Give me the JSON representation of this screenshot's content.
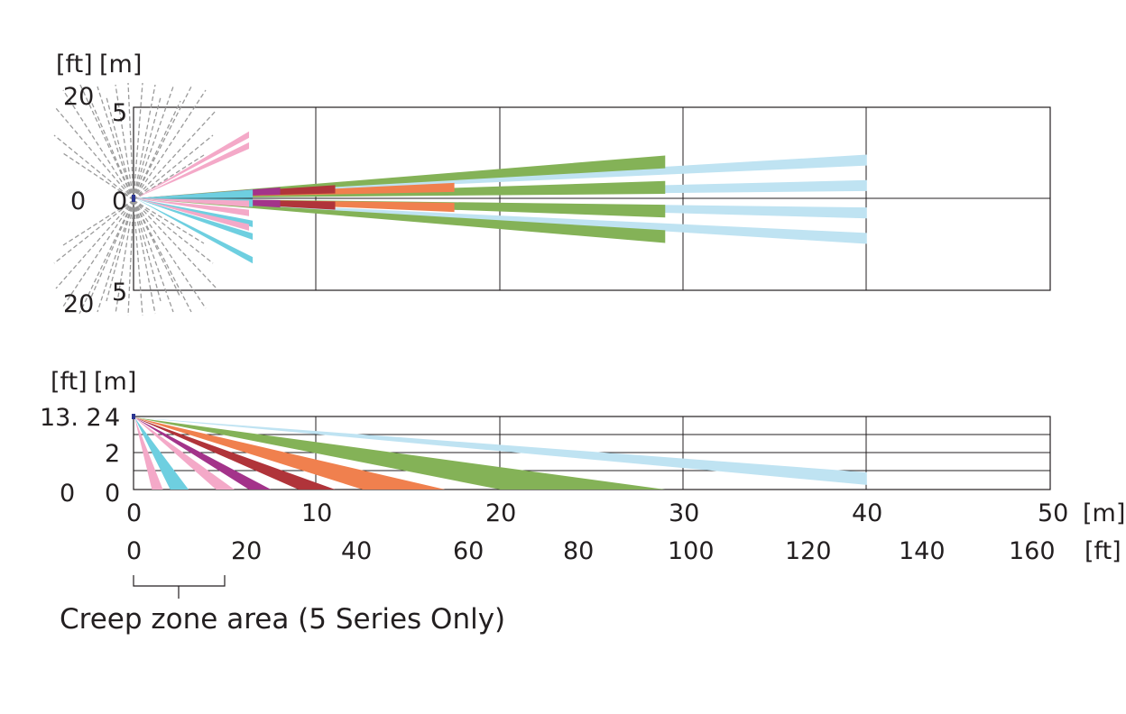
{
  "colors": {
    "frame": "#231f20",
    "grid": "#231f20",
    "ir_gray": "#9a9a9a",
    "pink": "#f4a9c8",
    "cyan": "#6ecfe0",
    "purple": "#a3338a",
    "dark_red": "#b0343a",
    "orange": "#f0804e",
    "green": "#84b257",
    "light_blue": "#bfe3f2",
    "navy": "#2b3590"
  },
  "top_view": {
    "units_ft": "[ft]",
    "units_m": "[m]",
    "ft_top": "20",
    "ft_mid": "0",
    "ft_bottom": "20",
    "m_top": "5",
    "m_mid": "0",
    "m_bottom": "5",
    "y_range_m": [
      -5,
      5
    ],
    "x_range_m": [
      0,
      50
    ],
    "gridlines_x_m": [
      10,
      20,
      30,
      40
    ]
  },
  "side_view": {
    "units_ft": "[ft]",
    "units_m": "[m]",
    "ft_top": "13. 2",
    "ft_bottom": "0",
    "m_top": "4",
    "m_mid": "2",
    "m_bottom": "0",
    "y_range_m": [
      0,
      4
    ],
    "gridlines_y_m": [
      1,
      2,
      3
    ],
    "gridlines_x_m": [
      10,
      20,
      30,
      40
    ]
  },
  "x_axis": {
    "m_ticks": [
      "0",
      "10",
      "20",
      "30",
      "40",
      "50"
    ],
    "m_unit": "[m]",
    "ft_ticks": [
      "0",
      "20",
      "40",
      "60",
      "80",
      "100",
      "120",
      "140",
      "160"
    ],
    "ft_unit": "[ft]"
  },
  "creep_zone": {
    "label": "Creep zone area (5 Series Only)",
    "range_m": [
      0,
      5
    ]
  },
  "top_beams": [
    {
      "zone": "light-blue",
      "length_m": 40,
      "offsets_m": [
        2.1,
        0.7,
        -0.8,
        -2.2
      ],
      "width_m": 0.6
    },
    {
      "zone": "green",
      "length_m": 29,
      "offsets_m": [
        2.0,
        0.6,
        -0.7,
        -2.1
      ],
      "width_m": 0.7
    },
    {
      "zone": "orange",
      "length_m": 17.5,
      "offsets_m": [
        0.6,
        -0.5
      ],
      "width_m": 0.5
    },
    {
      "zone": "dark-red",
      "length_m": 11,
      "offsets_m": [
        0.5,
        -0.4
      ],
      "width_m": 0.45
    },
    {
      "zone": "purple",
      "length_m": 8,
      "offsets_m": [
        0.4,
        -0.3
      ],
      "width_m": 0.4
    },
    {
      "zone": "cyan",
      "length_m": 6.5,
      "offsets_m": [
        0.3,
        0.2,
        -0.2,
        -0.3,
        -1.4,
        -2.1,
        -3.4
      ],
      "width_m": 0.35
    },
    {
      "zone": "pink",
      "length_m": 6.3,
      "offsets_m": [
        2.9,
        3.5,
        -0.3,
        -0.8,
        -1.6
      ],
      "width_m": 0.35
    }
  ],
  "side_beams": [
    {
      "zone": "light-blue",
      "reach_near_m": 40,
      "reach_far_m": 40,
      "end_h_m": 0.6
    },
    {
      "zone": "green",
      "reach_near_m": 20,
      "reach_far_m": 29,
      "end_h_m": 0
    },
    {
      "zone": "orange",
      "reach_near_m": 12.5,
      "reach_far_m": 17,
      "end_h_m": 0
    },
    {
      "zone": "dark-red",
      "reach_near_m": 9,
      "reach_far_m": 11,
      "end_h_m": 0
    },
    {
      "zone": "purple",
      "reach_near_m": 6.3,
      "reach_far_m": 7.5,
      "end_h_m": 0
    },
    {
      "zone": "pink",
      "reach_near_m": 4.5,
      "reach_far_m": 5.5,
      "end_h_m": 0
    },
    {
      "zone": "cyan",
      "reach_near_m": 2,
      "reach_far_m": 3,
      "end_h_m": 0
    },
    {
      "zone": "pink",
      "reach_near_m": 1,
      "reach_far_m": 1.6,
      "end_h_m": 0
    }
  ]
}
